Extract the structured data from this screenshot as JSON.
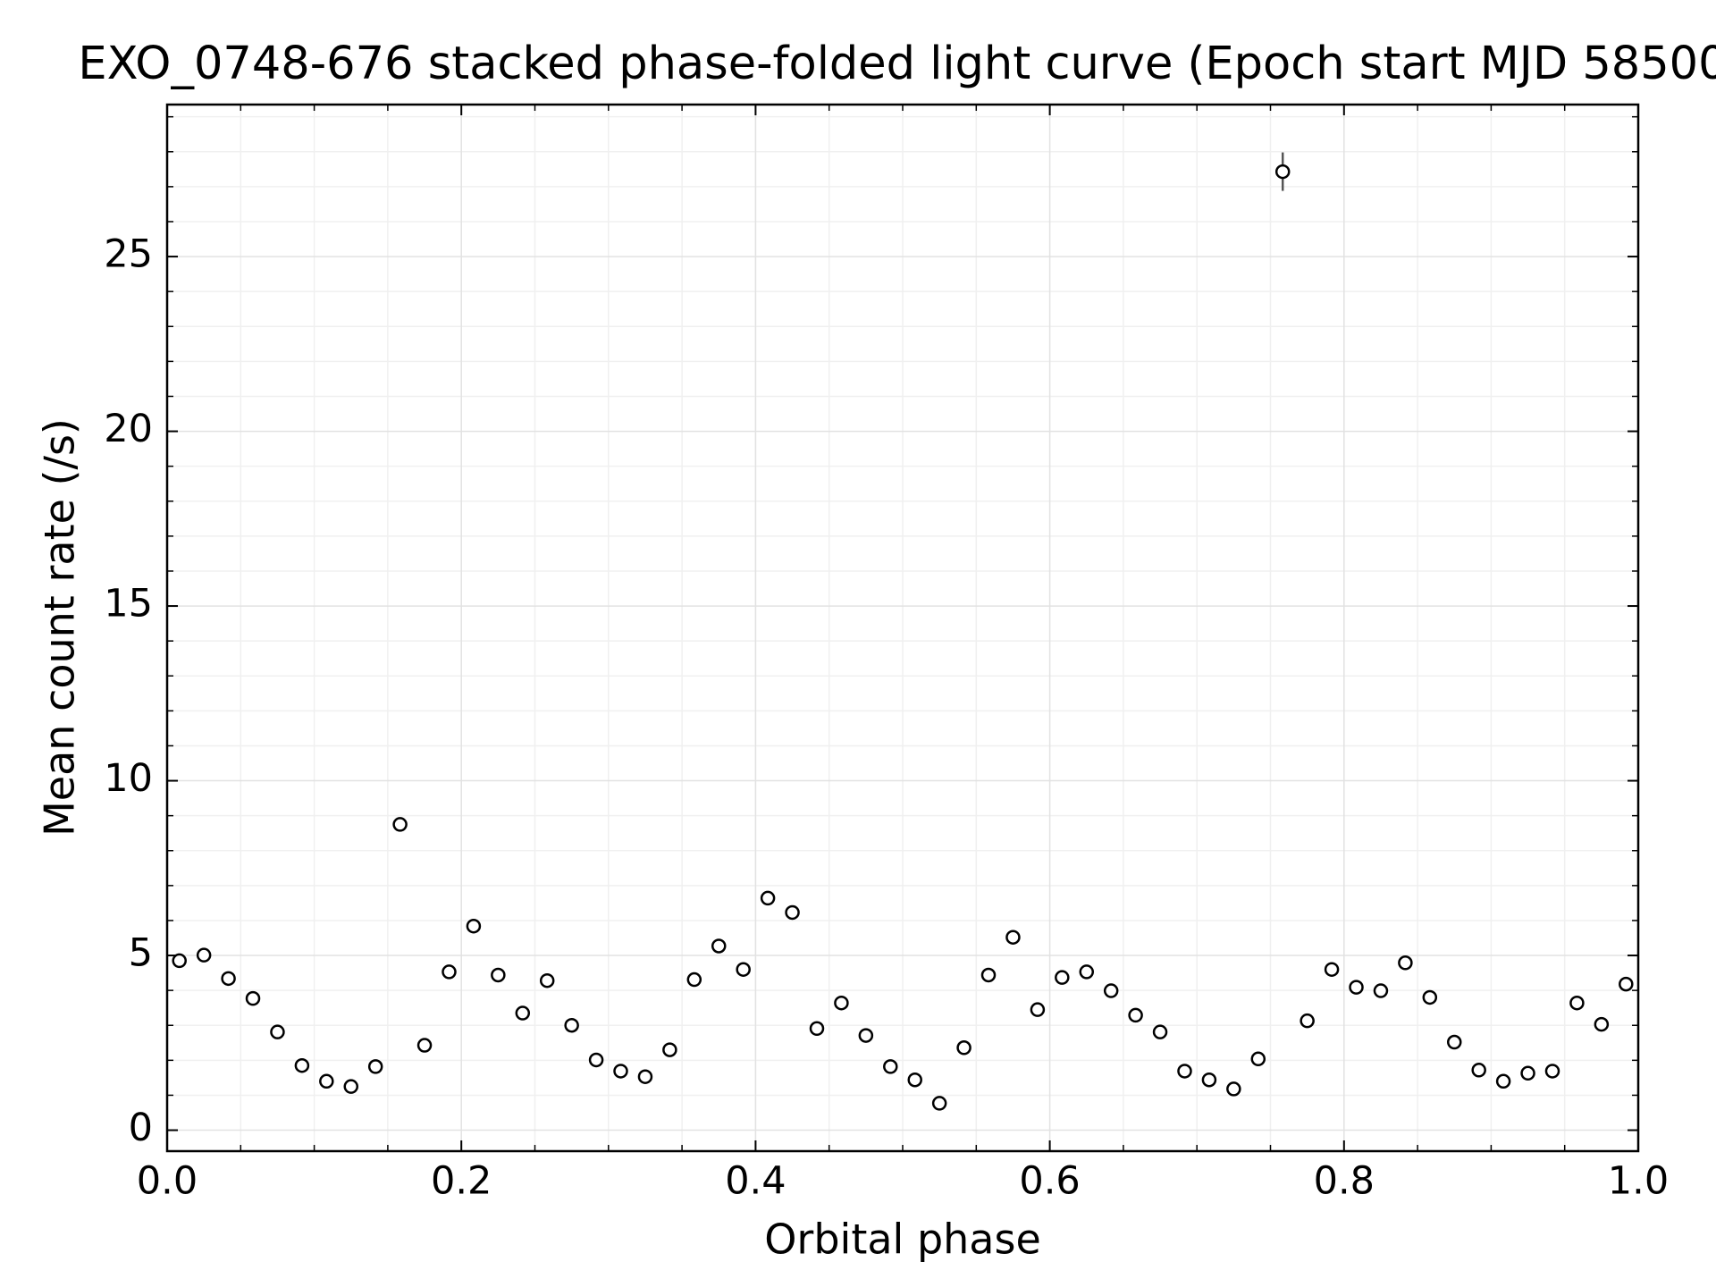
{
  "chart_data": {
    "type": "scatter",
    "title": "EXO_0748-676 stacked phase-folded light curve (Epoch start MJD 58500",
    "xlabel": "Orbital phase",
    "ylabel": "Mean count rate (/s)",
    "x": [
      0.00833,
      0.025,
      0.04167,
      0.05833,
      0.075,
      0.09167,
      0.10833,
      0.125,
      0.14167,
      0.15833,
      0.175,
      0.19167,
      0.20833,
      0.225,
      0.24167,
      0.25833,
      0.275,
      0.29167,
      0.30833,
      0.325,
      0.34167,
      0.35833,
      0.375,
      0.39167,
      0.40833,
      0.425,
      0.44167,
      0.45833,
      0.475,
      0.49167,
      0.50833,
      0.525,
      0.54167,
      0.55833,
      0.575,
      0.59167,
      0.60833,
      0.625,
      0.64167,
      0.65833,
      0.675,
      0.69167,
      0.70833,
      0.725,
      0.74167,
      0.75833,
      0.775,
      0.79167,
      0.80833,
      0.825,
      0.84167,
      0.85833,
      0.875,
      0.89167,
      0.90833,
      0.925,
      0.94167,
      0.95833,
      0.975,
      0.99167
    ],
    "values": [
      4.85,
      5.01,
      4.34,
      3.77,
      2.81,
      1.85,
      1.4,
      1.25,
      1.82,
      8.75,
      2.43,
      4.53,
      5.84,
      4.44,
      3.35,
      4.28,
      3.0,
      2.01,
      1.69,
      1.53,
      2.3,
      4.31,
      5.27,
      4.6,
      6.64,
      6.23,
      2.91,
      3.64,
      2.71,
      1.82,
      1.44,
      0.77,
      2.36,
      4.44,
      5.52,
      3.45,
      4.37,
      4.53,
      3.99,
      3.29,
      2.81,
      1.69,
      1.44,
      1.18,
      2.04,
      27.43,
      3.13,
      4.6,
      4.09,
      3.99,
      4.79,
      3.8,
      2.52,
      1.72,
      1.4,
      1.63,
      1.69,
      3.64,
      3.03,
      4.18
    ],
    "errors": [
      0.1,
      0.1,
      0.1,
      0.1,
      0.1,
      0.1,
      0.1,
      0.1,
      0.1,
      0.15,
      0.1,
      0.1,
      0.1,
      0.1,
      0.1,
      0.1,
      0.1,
      0.1,
      0.1,
      0.1,
      0.1,
      0.1,
      0.1,
      0.1,
      0.1,
      0.1,
      0.1,
      0.1,
      0.1,
      0.1,
      0.1,
      0.1,
      0.1,
      0.1,
      0.1,
      0.1,
      0.1,
      0.1,
      0.1,
      0.1,
      0.1,
      0.1,
      0.1,
      0.1,
      0.1,
      0.55,
      0.1,
      0.1,
      0.1,
      0.1,
      0.1,
      0.1,
      0.1,
      0.1,
      0.1,
      0.1,
      0.1,
      0.1,
      0.1,
      0.1
    ],
    "color": "#000000",
    "xlim": [
      0,
      1
    ],
    "ylim": [
      -0.6,
      29.35
    ],
    "xticks": [
      {
        "value": 0,
        "label": "0.0"
      },
      0.2,
      0.4,
      0.6,
      0.8,
      {
        "value": 1,
        "label": "1.0"
      }
    ],
    "yticks": [
      0,
      5,
      10,
      15,
      20,
      25
    ],
    "xminorticks": [
      0.05,
      0.1,
      0.15,
      0.25,
      0.3,
      0.35,
      0.45,
      0.5,
      0.55,
      0.65,
      0.7,
      0.75,
      0.85,
      0.9,
      0.95
    ],
    "yminorticks": [
      1,
      2,
      3,
      4,
      6,
      7,
      8,
      9,
      11,
      12,
      13,
      14,
      16,
      17,
      18,
      19,
      21,
      22,
      23,
      24,
      26,
      27,
      28,
      29
    ],
    "grid": true
  }
}
